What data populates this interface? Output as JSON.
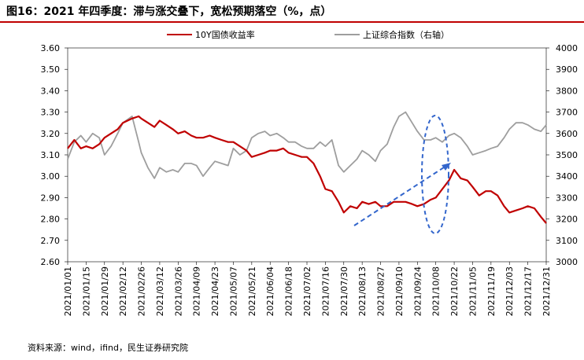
{
  "title": "图16：2021 年四季度：滞与涨交叠下，宽松预期落空（%，点）",
  "source": "资料来源：wind，ifind，民生证券研究院",
  "chart_data": {
    "type": "line",
    "title": "图16：2021 年四季度：滞与涨交叠下，宽松预期落空（%，点）",
    "legend": "top",
    "grid": false,
    "x_tick_labels": [
      "2021/01/01",
      "2021/01/15",
      "2021/01/29",
      "2021/02/12",
      "2021/02/26",
      "2021/03/12",
      "2021/03/26",
      "2021/04/09",
      "2021/04/23",
      "2021/05/07",
      "2021/05/21",
      "2021/06/04",
      "2021/06/18",
      "2021/07/02",
      "2021/07/16",
      "2021/07/30",
      "2021/08/13",
      "2021/08/27",
      "2021/09/10",
      "2021/09/24",
      "2021/10/08",
      "2021/10/22",
      "2021/11/05",
      "2021/11/19",
      "2021/12/03",
      "2021/12/17",
      "2021/12/31"
    ],
    "y_left": {
      "ylim": [
        2.6,
        3.6
      ],
      "ticks": [
        "2.60",
        "2.70",
        "2.80",
        "2.90",
        "3.00",
        "3.10",
        "3.20",
        "3.30",
        "3.40",
        "3.50",
        "3.60"
      ]
    },
    "y_right": {
      "ylim": [
        3000,
        4000
      ],
      "ticks": [
        "3000",
        "3100",
        "3200",
        "3300",
        "3400",
        "3500",
        "3600",
        "3700",
        "3800",
        "3900",
        "4000"
      ]
    },
    "series": [
      {
        "name": "10Y国债收益率",
        "axis": "left",
        "color": "#c00000",
        "x": [
          "2021/01/01",
          "2021/01/06",
          "2021/01/11",
          "2021/01/15",
          "2021/01/20",
          "2021/01/25",
          "2021/01/29",
          "2021/02/03",
          "2021/02/08",
          "2021/02/12",
          "2021/02/19",
          "2021/02/24",
          "2021/02/26",
          "2021/03/03",
          "2021/03/08",
          "2021/03/12",
          "2021/03/17",
          "2021/03/22",
          "2021/03/26",
          "2021/03/31",
          "2021/04/05",
          "2021/04/09",
          "2021/04/14",
          "2021/04/19",
          "2021/04/23",
          "2021/04/28",
          "2021/05/03",
          "2021/05/07",
          "2021/05/12",
          "2021/05/17",
          "2021/05/21",
          "2021/05/26",
          "2021/05/31",
          "2021/06/04",
          "2021/06/09",
          "2021/06/14",
          "2021/06/18",
          "2021/06/23",
          "2021/06/28",
          "2021/07/02",
          "2021/07/07",
          "2021/07/12",
          "2021/07/16",
          "2021/07/21",
          "2021/07/26",
          "2021/07/30",
          "2021/08/04",
          "2021/08/09",
          "2021/08/13",
          "2021/08/18",
          "2021/08/23",
          "2021/08/27",
          "2021/09/01",
          "2021/09/06",
          "2021/09/10",
          "2021/09/15",
          "2021/09/20",
          "2021/09/24",
          "2021/09/29",
          "2021/10/04",
          "2021/10/08",
          "2021/10/13",
          "2021/10/18",
          "2021/10/22",
          "2021/10/27",
          "2021/11/01",
          "2021/11/05",
          "2021/11/10",
          "2021/11/15",
          "2021/11/19",
          "2021/11/24",
          "2021/11/29",
          "2021/12/03",
          "2021/12/08",
          "2021/12/13",
          "2021/12/17",
          "2021/12/22",
          "2021/12/27",
          "2021/12/31"
        ],
        "values": [
          3.13,
          3.17,
          3.13,
          3.14,
          3.13,
          3.15,
          3.18,
          3.2,
          3.22,
          3.25,
          3.27,
          3.28,
          3.27,
          3.25,
          3.23,
          3.26,
          3.24,
          3.22,
          3.2,
          3.21,
          3.19,
          3.18,
          3.18,
          3.19,
          3.18,
          3.17,
          3.16,
          3.16,
          3.14,
          3.12,
          3.09,
          3.1,
          3.11,
          3.12,
          3.12,
          3.13,
          3.11,
          3.1,
          3.09,
          3.09,
          3.06,
          3.0,
          2.94,
          2.93,
          2.88,
          2.83,
          2.86,
          2.85,
          2.88,
          2.87,
          2.88,
          2.86,
          2.86,
          2.88,
          2.88,
          2.88,
          2.87,
          2.86,
          2.87,
          2.89,
          2.9,
          2.94,
          2.98,
          3.03,
          2.99,
          2.98,
          2.95,
          2.91,
          2.93,
          2.93,
          2.91,
          2.86,
          2.83,
          2.84,
          2.85,
          2.86,
          2.85,
          2.81,
          2.78
        ]
      },
      {
        "name": "上证综合指数（右轴）",
        "axis": "right",
        "color": "#9e9e9e",
        "x": [
          "2021/01/01",
          "2021/01/06",
          "2021/01/11",
          "2021/01/15",
          "2021/01/20",
          "2021/01/25",
          "2021/01/29",
          "2021/02/03",
          "2021/02/08",
          "2021/02/12",
          "2021/02/19",
          "2021/02/24",
          "2021/02/26",
          "2021/03/03",
          "2021/03/08",
          "2021/03/12",
          "2021/03/17",
          "2021/03/22",
          "2021/03/26",
          "2021/03/31",
          "2021/04/05",
          "2021/04/09",
          "2021/04/14",
          "2021/04/19",
          "2021/04/23",
          "2021/04/28",
          "2021/05/03",
          "2021/05/07",
          "2021/05/12",
          "2021/05/17",
          "2021/05/21",
          "2021/05/26",
          "2021/05/31",
          "2021/06/04",
          "2021/06/09",
          "2021/06/14",
          "2021/06/18",
          "2021/06/23",
          "2021/06/28",
          "2021/07/02",
          "2021/07/07",
          "2021/07/12",
          "2021/07/16",
          "2021/07/21",
          "2021/07/26",
          "2021/07/30",
          "2021/08/04",
          "2021/08/09",
          "2021/08/13",
          "2021/08/18",
          "2021/08/23",
          "2021/08/27",
          "2021/09/01",
          "2021/09/06",
          "2021/09/10",
          "2021/09/15",
          "2021/09/20",
          "2021/09/24",
          "2021/09/29",
          "2021/10/04",
          "2021/10/08",
          "2021/10/13",
          "2021/10/18",
          "2021/10/22",
          "2021/10/27",
          "2021/11/01",
          "2021/11/05",
          "2021/11/10",
          "2021/11/15",
          "2021/11/19",
          "2021/11/24",
          "2021/11/29",
          "2021/12/03",
          "2021/12/08",
          "2021/12/13",
          "2021/12/17",
          "2021/12/22",
          "2021/12/27",
          "2021/12/31"
        ],
        "values": [
          3480,
          3560,
          3590,
          3560,
          3600,
          3580,
          3500,
          3540,
          3600,
          3650,
          3680,
          3560,
          3510,
          3440,
          3390,
          3440,
          3420,
          3430,
          3420,
          3460,
          3460,
          3450,
          3400,
          3440,
          3470,
          3460,
          3450,
          3530,
          3500,
          3520,
          3580,
          3600,
          3610,
          3590,
          3600,
          3580,
          3560,
          3560,
          3540,
          3530,
          3530,
          3560,
          3540,
          3570,
          3450,
          3420,
          3450,
          3480,
          3520,
          3500,
          3470,
          3520,
          3550,
          3630,
          3680,
          3700,
          3650,
          3610,
          3570,
          3570,
          3580,
          3560,
          3590,
          3600,
          3580,
          3540,
          3500,
          3510,
          3520,
          3530,
          3540,
          3580,
          3620,
          3650,
          3650,
          3640,
          3620,
          3610,
          3640
        ]
      }
    ]
  }
}
